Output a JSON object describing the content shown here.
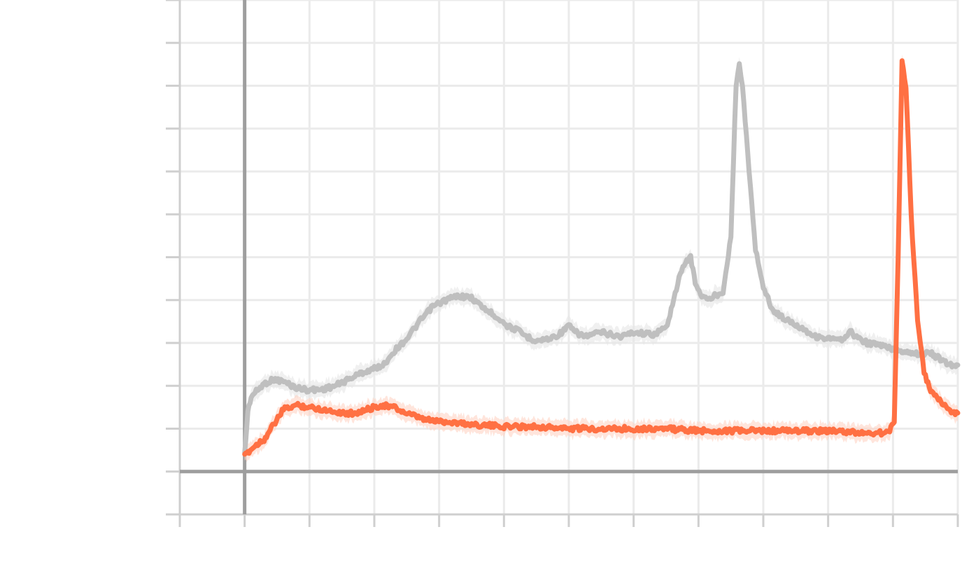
{
  "chart_data": {
    "type": "line",
    "title": "",
    "xlabel": "",
    "ylabel": "",
    "xlim": [
      -1,
      11
    ],
    "ylim": [
      -1,
      11
    ],
    "grid": true,
    "series": [
      {
        "color": "#bfbfbf",
        "band_color": "#e6e6e6",
        "points": [
          [
            0.0,
            0.4
          ],
          [
            0.05,
            1.4
          ],
          [
            0.1,
            1.75
          ],
          [
            0.2,
            1.9
          ],
          [
            0.3,
            2.05
          ],
          [
            0.45,
            2.15
          ],
          [
            0.6,
            2.1
          ],
          [
            0.8,
            1.95
          ],
          [
            1.0,
            1.9
          ],
          [
            1.2,
            1.92
          ],
          [
            1.4,
            2.0
          ],
          [
            1.6,
            2.15
          ],
          [
            1.8,
            2.3
          ],
          [
            2.0,
            2.4
          ],
          [
            2.15,
            2.5
          ],
          [
            2.3,
            2.8
          ],
          [
            2.5,
            3.1
          ],
          [
            2.7,
            3.5
          ],
          [
            2.9,
            3.85
          ],
          [
            3.1,
            4.0
          ],
          [
            3.3,
            4.1
          ],
          [
            3.5,
            4.05
          ],
          [
            3.7,
            3.8
          ],
          [
            3.9,
            3.6
          ],
          [
            4.05,
            3.4
          ],
          [
            4.2,
            3.3
          ],
          [
            4.35,
            3.15
          ],
          [
            4.5,
            3.05
          ],
          [
            4.7,
            3.1
          ],
          [
            4.85,
            3.2
          ],
          [
            5.0,
            3.4
          ],
          [
            5.1,
            3.25
          ],
          [
            5.25,
            3.15
          ],
          [
            5.5,
            3.25
          ],
          [
            5.8,
            3.15
          ],
          [
            6.0,
            3.25
          ],
          [
            6.3,
            3.2
          ],
          [
            6.5,
            3.35
          ],
          [
            6.6,
            3.9
          ],
          [
            6.7,
            4.5
          ],
          [
            6.8,
            4.9
          ],
          [
            6.88,
            5.0
          ],
          [
            6.95,
            4.4
          ],
          [
            7.05,
            4.1
          ],
          [
            7.15,
            4.0
          ],
          [
            7.25,
            4.1
          ],
          [
            7.38,
            4.2
          ],
          [
            7.5,
            5.5
          ],
          [
            7.58,
            9.0
          ],
          [
            7.63,
            9.5
          ],
          [
            7.68,
            9.0
          ],
          [
            7.78,
            7.0
          ],
          [
            7.88,
            5.2
          ],
          [
            8.0,
            4.3
          ],
          [
            8.15,
            3.75
          ],
          [
            8.4,
            3.5
          ],
          [
            8.6,
            3.35
          ],
          [
            8.8,
            3.15
          ],
          [
            9.0,
            3.1
          ],
          [
            9.25,
            3.05
          ],
          [
            9.32,
            3.3
          ],
          [
            9.42,
            3.15
          ],
          [
            9.6,
            3.0
          ],
          [
            9.8,
            2.95
          ],
          [
            10.0,
            2.85
          ],
          [
            10.2,
            2.8
          ],
          [
            10.4,
            2.75
          ],
          [
            10.6,
            2.75
          ],
          [
            10.75,
            2.6
          ],
          [
            10.85,
            2.5
          ],
          [
            10.95,
            2.48
          ],
          [
            11.0,
            2.45
          ]
        ]
      },
      {
        "color": "#ff7043",
        "band_color": "#ffd3c4",
        "points": [
          [
            0.0,
            0.35
          ],
          [
            0.05,
            0.45
          ],
          [
            0.2,
            0.65
          ],
          [
            0.3,
            0.75
          ],
          [
            0.45,
            1.1
          ],
          [
            0.6,
            1.45
          ],
          [
            0.8,
            1.55
          ],
          [
            1.0,
            1.5
          ],
          [
            1.2,
            1.45
          ],
          [
            1.4,
            1.4
          ],
          [
            1.6,
            1.35
          ],
          [
            1.8,
            1.4
          ],
          [
            2.0,
            1.5
          ],
          [
            2.1,
            1.55
          ],
          [
            2.3,
            1.5
          ],
          [
            2.5,
            1.35
          ],
          [
            2.8,
            1.2
          ],
          [
            3.2,
            1.15
          ],
          [
            3.5,
            1.1
          ],
          [
            4.0,
            1.05
          ],
          [
            4.5,
            1.05
          ],
          [
            5.0,
            1.0
          ],
          [
            5.5,
            1.0
          ],
          [
            6.0,
            1.0
          ],
          [
            6.5,
            1.0
          ],
          [
            7.0,
            0.95
          ],
          [
            7.5,
            0.95
          ],
          [
            8.0,
            0.95
          ],
          [
            8.5,
            0.95
          ],
          [
            9.0,
            0.95
          ],
          [
            9.5,
            0.9
          ],
          [
            9.9,
            0.9
          ],
          [
            9.95,
            0.95
          ],
          [
            10.02,
            1.2
          ],
          [
            10.08,
            5.0
          ],
          [
            10.14,
            9.6
          ],
          [
            10.2,
            9.0
          ],
          [
            10.28,
            6.0
          ],
          [
            10.38,
            3.5
          ],
          [
            10.48,
            2.3
          ],
          [
            10.58,
            1.9
          ],
          [
            10.68,
            1.7
          ],
          [
            10.8,
            1.55
          ],
          [
            10.9,
            1.4
          ],
          [
            11.0,
            1.35
          ]
        ]
      }
    ]
  }
}
